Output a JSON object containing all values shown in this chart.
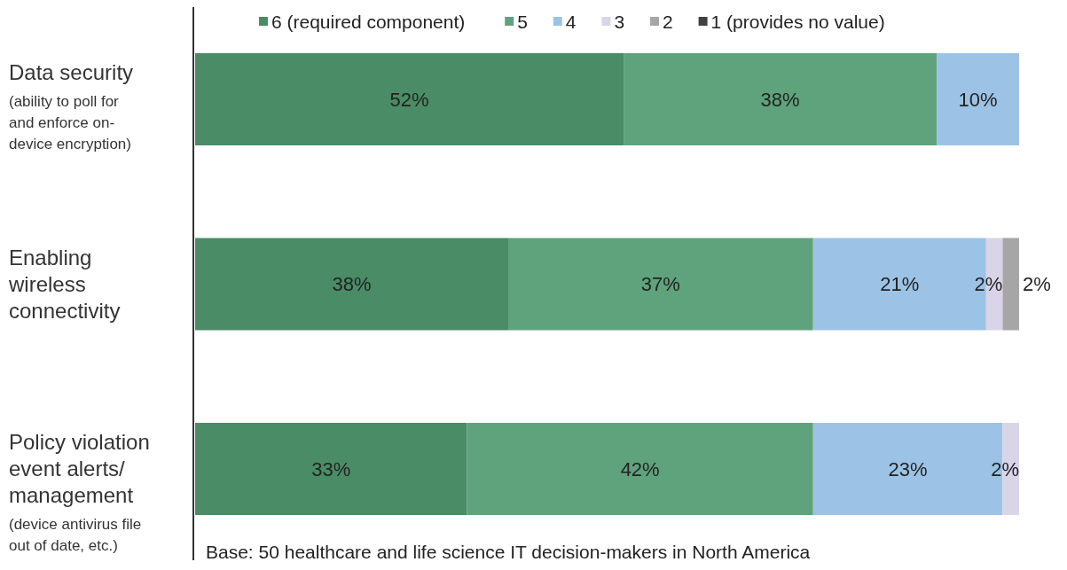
{
  "chart_data": {
    "type": "bar",
    "orientation": "horizontal",
    "stacked": true,
    "legend": "top",
    "categories": [
      "Data security\n(ability to poll for\nand enforce on-\ndevice encryption)",
      "Enabling\nwireless\nconnectivity",
      "Policy violation\nevent alerts/\nmanagement\n(device antivirus file\nout of date, etc.)"
    ],
    "series": [
      {
        "name": "6 (required component)",
        "color": "#4a8c66",
        "values": [
          52,
          38,
          33
        ],
        "value_labels": [
          "52%",
          "38%",
          "33%"
        ]
      },
      {
        "name": "5",
        "color": "#5fa37d",
        "values": [
          38,
          37,
          42
        ],
        "value_labels": [
          "38%",
          "37%",
          "42%"
        ]
      },
      {
        "name": "4",
        "color": "#9cc3e6",
        "values": [
          10,
          21,
          23
        ],
        "value_labels": [
          "10%",
          "21%",
          "23%"
        ]
      },
      {
        "name": "3",
        "color": "#d9d4e8",
        "values": [
          0,
          2,
          2
        ],
        "value_labels": [
          null,
          "2%",
          "2%"
        ]
      },
      {
        "name": "2",
        "color": "#a6a6a6",
        "values": [
          0,
          2,
          0
        ],
        "value_labels": [
          null,
          "2%",
          null
        ]
      },
      {
        "name": "1 (provides no value)",
        "color": "#404040",
        "values": [
          0,
          0,
          0
        ],
        "value_labels": [
          null,
          null,
          null
        ]
      }
    ],
    "annotations": [
      "Base: 50 healthcare and life science IT decision-makers in North America"
    ]
  }
}
